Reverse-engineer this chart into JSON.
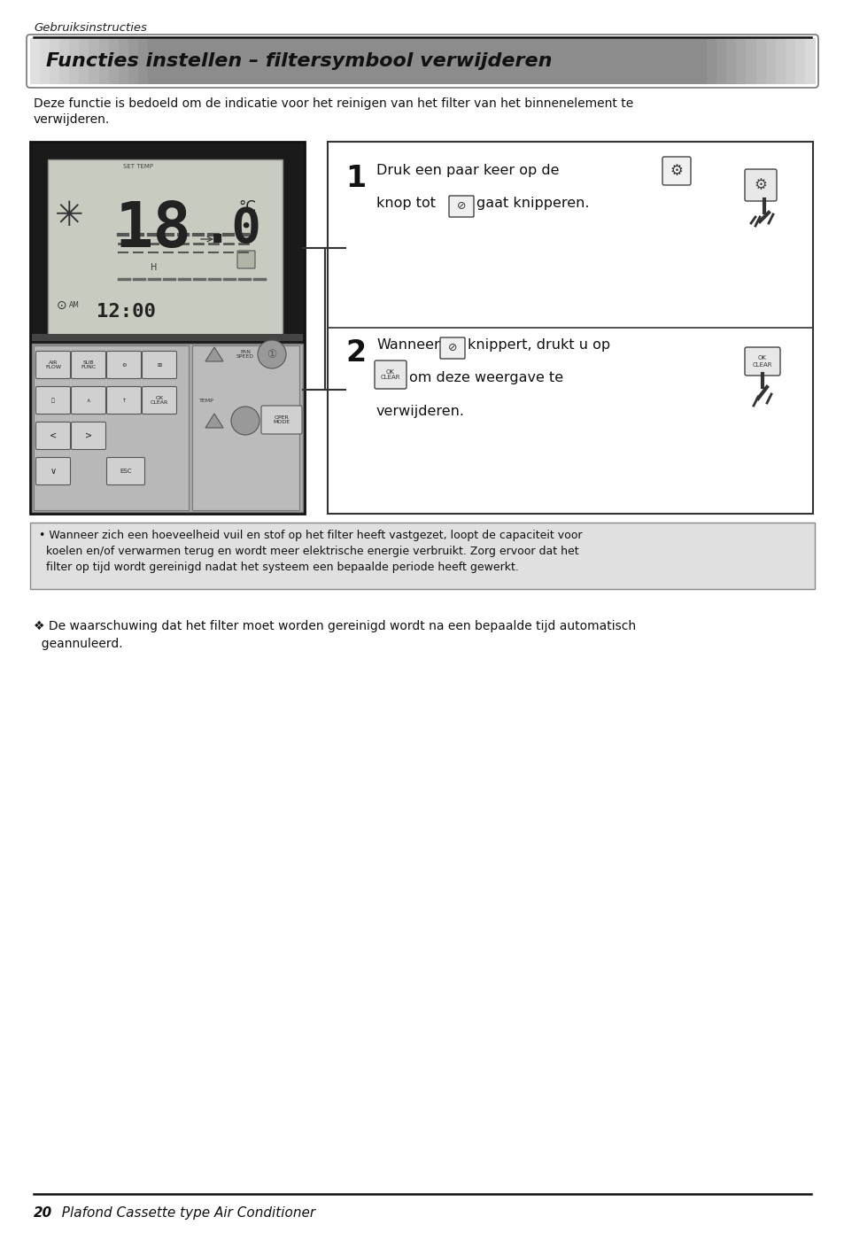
{
  "page_header": "Gebruiksinstructies",
  "title": "Functies instellen – filtersymbool verwijderen",
  "intro_line1": "Deze functie is bedoeld om de indicatie voor het reinigen van het filter van het binnenelement te",
  "intro_line2": "verwijderen.",
  "step1_text_a": "Druk een paar keer op de",
  "step1_text_b": "knop tot",
  "step1_text_c": "gaat knipperen.",
  "step2_text_a": "Wanneer",
  "step2_text_b": "knippert, drukt u op",
  "step2_text_c": "om deze weergave te",
  "step2_text_d": "verwijderen.",
  "note_line1": "• Wanneer zich een hoeveelheid vuil en stof op het filter heeft vastgezet, loopt de capaciteit voor",
  "note_line2": "  koelen en/of verwarmen terug en wordt meer elektrische energie verbruikt. Zorg ervoor dat het",
  "note_line3": "  filter op tijd wordt gereinigd nadat het systeem een bepaalde periode heeft gewerkt.",
  "footer_note_line1": "❖ De waarschuwing dat het filter moet worden gereinigd wordt na een bepaalde tijd automatisch",
  "footer_note_line2": "  geannuleerd.",
  "footer_num": "20",
  "footer_title": "  Plafond Cassette type Air Conditioner",
  "bg_color": "#ffffff"
}
